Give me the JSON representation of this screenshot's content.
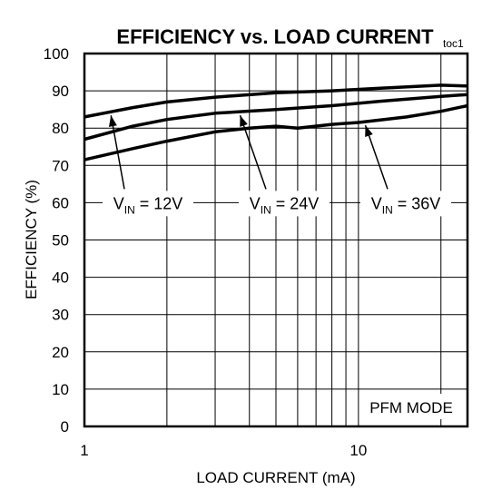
{
  "chart_data": {
    "type": "line",
    "title": "EFFICIENCY vs. LOAD CURRENT",
    "figure_id": "toc1",
    "xlabel": "LOAD CURRENT (mA)",
    "ylabel": "EFFICIENCY (%)",
    "xscale": "log",
    "xlim": [
      1,
      25
    ],
    "ylim": [
      0,
      100
    ],
    "xticks": [
      1,
      10
    ],
    "yticks": [
      0,
      10,
      20,
      30,
      40,
      50,
      60,
      70,
      80,
      90,
      100
    ],
    "grid": true,
    "mode_label": "PFM MODE",
    "series": [
      {
        "name": "VIN = 12V",
        "label_main": "V",
        "label_sub": "IN",
        "label_tail": " = 12V",
        "color": "#000000",
        "x": [
          1,
          1.5,
          2,
          3,
          5,
          8,
          12,
          20,
          25
        ],
        "y": [
          83,
          85.5,
          87,
          88.3,
          89.5,
          90,
          90.7,
          91.5,
          91.3
        ]
      },
      {
        "name": "VIN = 24V",
        "label_main": "V",
        "label_sub": "IN",
        "label_tail": " = 24V",
        "color": "#000000",
        "x": [
          1,
          1.5,
          2,
          3,
          5,
          8,
          12,
          20,
          25
        ],
        "y": [
          77,
          80.5,
          82.3,
          84,
          85,
          86,
          87.2,
          88.5,
          89
        ]
      },
      {
        "name": "VIN = 36V",
        "label_main": "V",
        "label_sub": "IN",
        "label_tail": " = 36V",
        "color": "#000000",
        "x": [
          1,
          1.5,
          2,
          3,
          4,
          5,
          6,
          8,
          10,
          15,
          20,
          25
        ],
        "y": [
          71.5,
          74.5,
          76.5,
          79,
          80,
          80.5,
          80,
          81,
          81.5,
          83,
          84.5,
          86
        ]
      }
    ]
  }
}
